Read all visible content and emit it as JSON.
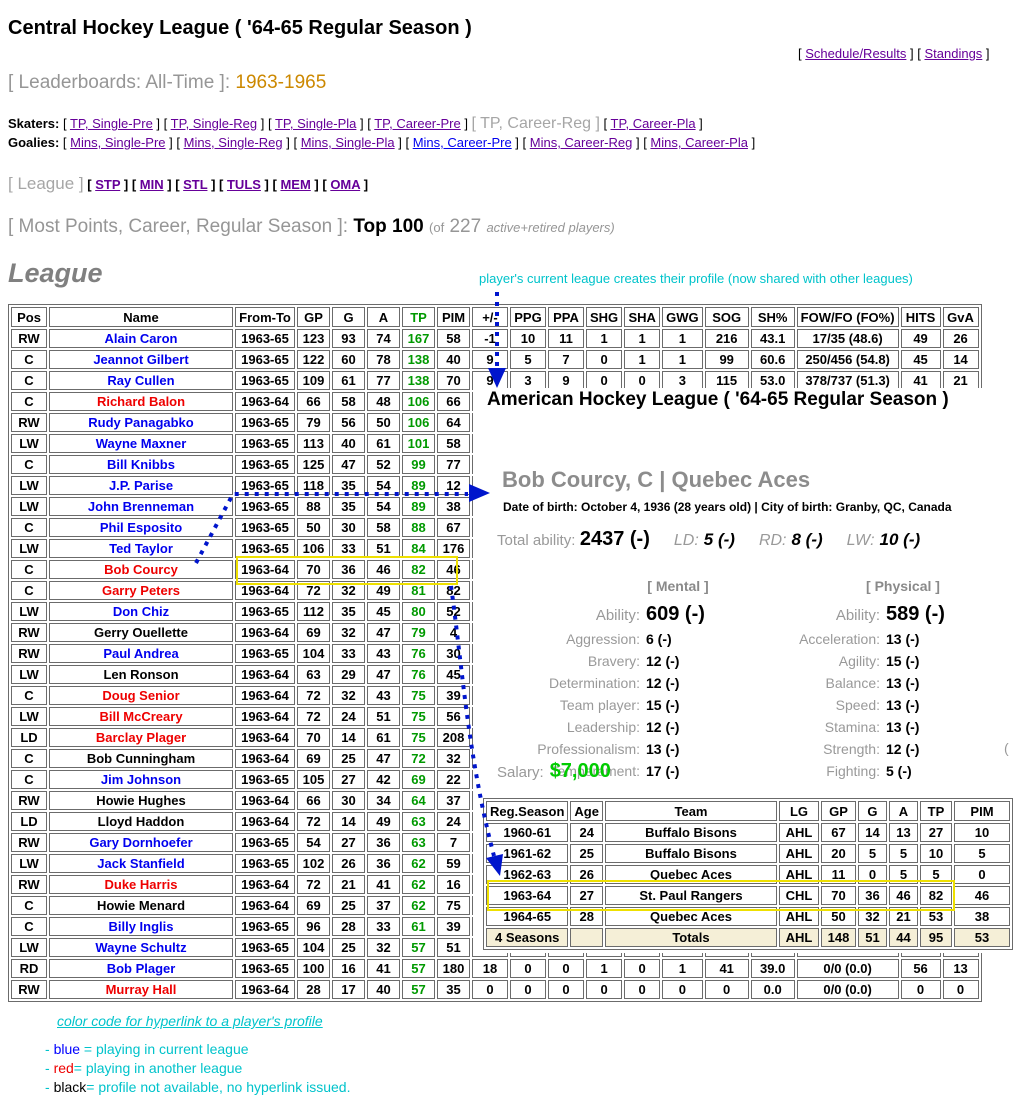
{
  "colors": {
    "link_blue": "#0000ee",
    "visited_purple": "#660099",
    "other_league_red": "#ee0000",
    "points_green": "#009900",
    "annotation_cyan": "#00c3cb",
    "salary_green": "#00cc00",
    "highlight_yellow": "#eee000",
    "arrow_blue": "#0015cc",
    "season_range_orange": "#cc8800",
    "totals_row_bg": "#f5efd7"
  },
  "header": {
    "title": "Central Hockey League ( '64-65 Regular Season )",
    "top_links": [
      {
        "label": "Schedule/Results"
      },
      {
        "label": "Standings"
      }
    ],
    "leaderboards": {
      "label": "[ Leaderboards: All-Time ]:",
      "value": "1963-1965"
    }
  },
  "nav": {
    "skaters": {
      "label": "Skaters:",
      "items": [
        {
          "label": "TP, Single-Pre",
          "type": "visited"
        },
        {
          "label": "TP, Single-Reg",
          "type": "visited"
        },
        {
          "label": "TP, Single-Pla",
          "type": "visited"
        },
        {
          "label": "TP, Career-Pre",
          "type": "visited"
        },
        {
          "label": "TP, Career-Reg",
          "type": "current"
        },
        {
          "label": "TP, Career-Pla",
          "type": "visited"
        }
      ]
    },
    "goalies": {
      "label": "Goalies:",
      "items": [
        {
          "label": "Mins, Single-Pre",
          "type": "visited"
        },
        {
          "label": "Mins, Single-Reg",
          "type": "visited"
        },
        {
          "label": "Mins, Single-Pla",
          "type": "visited"
        },
        {
          "label": "Mins, Career-Pre",
          "type": "link"
        },
        {
          "label": "Mins, Career-Reg",
          "type": "visited"
        },
        {
          "label": "Mins, Career-Pla",
          "type": "visited"
        }
      ]
    },
    "league_nav": {
      "current": "[ League ]",
      "items": [
        {
          "label": "STP",
          "type": "visited"
        },
        {
          "label": "MIN",
          "type": "visited"
        },
        {
          "label": "STL",
          "type": "visited"
        },
        {
          "label": "TULS",
          "type": "visited"
        },
        {
          "label": "MEM",
          "type": "visited"
        },
        {
          "label": "OMA",
          "type": "visited"
        }
      ]
    },
    "subtitle": {
      "label": "[ Most Points, Career, Regular Season ]:",
      "value": "Top 100",
      "count_prefix": "(of",
      "count": "227",
      "count_suffix": "active+retired players)"
    }
  },
  "section": {
    "heading": "League",
    "annotation": "player's current league creates their profile (now shared with other leagues)"
  },
  "league_table": {
    "columns": [
      "Pos",
      "Name",
      "From-To",
      "GP",
      "G",
      "A",
      "TP",
      "PIM",
      "+/-",
      "PPG",
      "PPA",
      "SHG",
      "SHA",
      "GWG",
      "SOG",
      "SH%",
      "FOW/FO (FO%)",
      "HITS",
      "GvA"
    ],
    "rows": [
      [
        "RW",
        "Alain Caron",
        "blue",
        "1963-65",
        "123",
        "93",
        "74",
        "167",
        "58",
        "-1",
        "10",
        "11",
        "1",
        "1",
        "1",
        "216",
        "43.1",
        "17/35 (48.6)",
        "49",
        "26"
      ],
      [
        "C",
        "Jeannot Gilbert",
        "blue",
        "1963-65",
        "122",
        "60",
        "78",
        "138",
        "40",
        "9",
        "5",
        "7",
        "0",
        "1",
        "1",
        "99",
        "60.6",
        "250/456 (54.8)",
        "45",
        "14"
      ],
      [
        "C",
        "Ray Cullen",
        "blue",
        "1963-65",
        "109",
        "61",
        "77",
        "138",
        "70",
        "9",
        "3",
        "9",
        "0",
        "0",
        "3",
        "115",
        "53.0",
        "378/737 (51.3)",
        "41",
        "21"
      ],
      [
        "C",
        "Richard Balon",
        "red",
        "1963-64",
        "66",
        "58",
        "48",
        "106",
        "66",
        "",
        "",
        "",
        "",
        "",
        "",
        "",
        "",
        "",
        "",
        ""
      ],
      [
        "RW",
        "Rudy Panagabko",
        "blue",
        "1963-65",
        "79",
        "56",
        "50",
        "106",
        "64",
        "",
        "",
        "",
        "",
        "",
        "",
        "",
        "",
        "",
        "",
        ""
      ],
      [
        "LW",
        "Wayne Maxner",
        "blue",
        "1963-65",
        "113",
        "40",
        "61",
        "101",
        "58",
        "",
        "",
        "",
        "",
        "",
        "",
        "",
        "",
        "",
        "",
        ""
      ],
      [
        "C",
        "Bill Knibbs",
        "blue",
        "1963-65",
        "125",
        "47",
        "52",
        "99",
        "77",
        "",
        "",
        "",
        "",
        "",
        "",
        "",
        "",
        "",
        "",
        ""
      ],
      [
        "LW",
        "J.P. Parise",
        "blue",
        "1963-65",
        "118",
        "35",
        "54",
        "89",
        "12",
        "",
        "",
        "",
        "",
        "",
        "",
        "",
        "",
        "",
        "",
        ""
      ],
      [
        "LW",
        "John Brenneman",
        "blue",
        "1963-65",
        "88",
        "35",
        "54",
        "89",
        "38",
        "",
        "",
        "",
        "",
        "",
        "",
        "",
        "",
        "",
        "",
        ""
      ],
      [
        "C",
        "Phil Esposito",
        "blue",
        "1963-65",
        "50",
        "30",
        "58",
        "88",
        "67",
        "",
        "",
        "",
        "",
        "",
        "",
        "",
        "",
        "",
        "",
        ""
      ],
      [
        "LW",
        "Ted Taylor",
        "blue",
        "1963-65",
        "106",
        "33",
        "51",
        "84",
        "176",
        "",
        "",
        "",
        "",
        "",
        "",
        "",
        "",
        "",
        "",
        ""
      ],
      [
        "C",
        "Bob Courcy",
        "red",
        "1963-64",
        "70",
        "36",
        "46",
        "82",
        "46",
        "",
        "",
        "",
        "",
        "",
        "",
        "",
        "",
        "",
        "",
        ""
      ],
      [
        "C",
        "Garry Peters",
        "red",
        "1963-64",
        "72",
        "32",
        "49",
        "81",
        "82",
        "",
        "",
        "",
        "",
        "",
        "",
        "",
        "",
        "",
        "",
        ""
      ],
      [
        "LW",
        "Don Chiz",
        "blue",
        "1963-65",
        "112",
        "35",
        "45",
        "80",
        "52",
        "",
        "",
        "",
        "",
        "",
        "",
        "",
        "",
        "",
        "",
        ""
      ],
      [
        "RW",
        "Gerry Ouellette",
        "black",
        "1963-64",
        "69",
        "32",
        "47",
        "79",
        "4",
        "",
        "",
        "",
        "",
        "",
        "",
        "",
        "",
        "",
        "",
        ""
      ],
      [
        "RW",
        "Paul Andrea",
        "blue",
        "1963-65",
        "104",
        "33",
        "43",
        "76",
        "30",
        "",
        "",
        "",
        "",
        "",
        "",
        "",
        "",
        "",
        "",
        ""
      ],
      [
        "LW",
        "Len Ronson",
        "black",
        "1963-64",
        "63",
        "29",
        "47",
        "76",
        "45",
        "",
        "",
        "",
        "",
        "",
        "",
        "",
        "",
        "",
        "",
        ""
      ],
      [
        "C",
        "Doug Senior",
        "red",
        "1963-64",
        "72",
        "32",
        "43",
        "75",
        "39",
        "",
        "",
        "",
        "",
        "",
        "",
        "",
        "",
        "",
        "",
        ""
      ],
      [
        "LW",
        "Bill McCreary",
        "red",
        "1963-64",
        "72",
        "24",
        "51",
        "75",
        "56",
        "",
        "",
        "",
        "",
        "",
        "",
        "",
        "",
        "",
        "",
        ""
      ],
      [
        "LD",
        "Barclay Plager",
        "red",
        "1963-64",
        "70",
        "14",
        "61",
        "75",
        "208",
        "",
        "",
        "",
        "",
        "",
        "",
        "",
        "",
        "",
        "",
        ""
      ],
      [
        "C",
        "Bob Cunningham",
        "black",
        "1963-64",
        "69",
        "25",
        "47",
        "72",
        "32",
        "",
        "",
        "",
        "",
        "",
        "",
        "",
        "",
        "",
        "",
        ""
      ],
      [
        "C",
        "Jim Johnson",
        "blue",
        "1963-65",
        "105",
        "27",
        "42",
        "69",
        "22",
        "",
        "",
        "",
        "",
        "",
        "",
        "",
        "",
        "",
        "",
        ""
      ],
      [
        "RW",
        "Howie Hughes",
        "black",
        "1963-64",
        "66",
        "30",
        "34",
        "64",
        "37",
        "",
        "",
        "",
        "",
        "",
        "",
        "",
        "",
        "",
        "",
        ""
      ],
      [
        "LD",
        "Lloyd Haddon",
        "black",
        "1963-64",
        "72",
        "14",
        "49",
        "63",
        "24",
        "",
        "",
        "",
        "",
        "",
        "",
        "",
        "",
        "",
        "",
        ""
      ],
      [
        "RW",
        "Gary Dornhoefer",
        "blue",
        "1963-65",
        "54",
        "27",
        "36",
        "63",
        "7",
        "",
        "",
        "",
        "",
        "",
        "",
        "",
        "",
        "",
        "",
        ""
      ],
      [
        "LW",
        "Jack Stanfield",
        "blue",
        "1963-65",
        "102",
        "26",
        "36",
        "62",
        "59",
        "",
        "",
        "",
        "",
        "",
        "",
        "",
        "",
        "",
        "",
        ""
      ],
      [
        "RW",
        "Duke Harris",
        "red",
        "1963-64",
        "72",
        "21",
        "41",
        "62",
        "16",
        "",
        "",
        "",
        "",
        "",
        "",
        "",
        "",
        "",
        "",
        ""
      ],
      [
        "C",
        "Howie Menard",
        "black",
        "1963-64",
        "69",
        "25",
        "37",
        "62",
        "75",
        "",
        "",
        "",
        "",
        "",
        "",
        "",
        "",
        "",
        "",
        ""
      ],
      [
        "C",
        "Billy Inglis",
        "blue",
        "1963-65",
        "96",
        "28",
        "33",
        "61",
        "39",
        "",
        "",
        "",
        "",
        "",
        "",
        "",
        "",
        "",
        "",
        ""
      ],
      [
        "LW",
        "Wayne Schultz",
        "blue",
        "1963-65",
        "104",
        "25",
        "32",
        "57",
        "51",
        "",
        "",
        "",
        "",
        "",
        "",
        "",
        "",
        "",
        "",
        ""
      ],
      [
        "RD",
        "Bob Plager",
        "blue",
        "1963-65",
        "100",
        "16",
        "41",
        "57",
        "180",
        "18",
        "0",
        "0",
        "1",
        "0",
        "1",
        "41",
        "39.0",
        "0/0 (0.0)",
        "56",
        "13"
      ],
      [
        "RW",
        "Murray Hall",
        "red",
        "1963-64",
        "28",
        "17",
        "40",
        "57",
        "35",
        "0",
        "0",
        "0",
        "0",
        "0",
        "0",
        "0",
        "0.0",
        "0/0 (0.0)",
        "0",
        "0"
      ]
    ],
    "highlighted_player": "Bob Courcy"
  },
  "profile_popup": {
    "league_title": "American Hockey League ( '64-65 Regular Season )",
    "player": "Bob Courcy, C | Quebec Aces",
    "bio": "Date of birth: October 4, 1936 (28 years old) | City of birth: Granby, QC, Canada",
    "total_ability": {
      "label": "Total ability:",
      "value": "2437 (-)"
    },
    "positions": [
      {
        "label": "LD:",
        "value": "5 (-)"
      },
      {
        "label": "RD:",
        "value": "8 (-)"
      },
      {
        "label": "LW:",
        "value": "10 (-)"
      }
    ],
    "mental": {
      "header": "[ Mental ]",
      "attributes": [
        {
          "label": "Ability:",
          "value": "609 (-)",
          "big": true
        },
        {
          "label": "Aggression:",
          "value": "6 (-)"
        },
        {
          "label": "Bravery:",
          "value": "12 (-)"
        },
        {
          "label": "Determination:",
          "value": "12 (-)"
        },
        {
          "label": "Team player:",
          "value": "15 (-)"
        },
        {
          "label": "Leadership:",
          "value": "12 (-)"
        },
        {
          "label": "Professionalism:",
          "value": "13 (-)"
        },
        {
          "label": "Temperament:",
          "value": "17 (-)"
        }
      ]
    },
    "physical": {
      "header": "[ Physical ]",
      "attributes": [
        {
          "label": "Ability:",
          "value": "589 (-)",
          "big": true
        },
        {
          "label": "Acceleration:",
          "value": "13 (-)"
        },
        {
          "label": "Agility:",
          "value": "15 (-)"
        },
        {
          "label": "Balance:",
          "value": "13 (-)"
        },
        {
          "label": "Speed:",
          "value": "13 (-)"
        },
        {
          "label": "Stamina:",
          "value": "13 (-)"
        },
        {
          "label": "Strength:",
          "value": "12 (-)"
        },
        {
          "label": "Fighting:",
          "value": "5 (-)"
        }
      ]
    },
    "overflow_fragment": "(",
    "salary": {
      "label": "Salary:",
      "value": "$7,000"
    },
    "seasons_table": {
      "columns": [
        "Reg.Season",
        "Age",
        "Team",
        "LG",
        "GP",
        "G",
        "A",
        "TP",
        "PIM"
      ],
      "rows": [
        [
          "1960-61",
          "24",
          "Buffalo Bisons",
          "AHL",
          "67",
          "14",
          "13",
          "27",
          "10"
        ],
        [
          "1961-62",
          "25",
          "Buffalo Bisons",
          "AHL",
          "20",
          "5",
          "5",
          "10",
          "5"
        ],
        [
          "1962-63",
          "26",
          "Quebec Aces",
          "AHL",
          "11",
          "0",
          "5",
          "5",
          "0"
        ],
        [
          "1963-64",
          "27",
          "St. Paul Rangers",
          "CHL",
          "70",
          "36",
          "46",
          "82",
          "46"
        ],
        [
          "1964-65",
          "28",
          "Quebec Aces",
          "AHL",
          "50",
          "32",
          "21",
          "53",
          "38"
        ]
      ],
      "totals": [
        "4 Seasons",
        "",
        "Totals",
        "AHL",
        "148",
        "51",
        "44",
        "95",
        "53"
      ],
      "highlight_row_index": 3
    }
  },
  "legend": {
    "title": "color code for hyperlink to a player's profile",
    "items": [
      {
        "bullet": "- ",
        "key": "blue",
        "key_class": "k-blue",
        "rest": " = playing in current league"
      },
      {
        "bullet": "- ",
        "key": "red",
        "key_class": "k-red",
        "rest": "= playing in another league"
      },
      {
        "bullet": "- ",
        "key": "black",
        "key_class": "k-black",
        "rest": "= profile not available, no hyperlink issued."
      }
    ]
  }
}
